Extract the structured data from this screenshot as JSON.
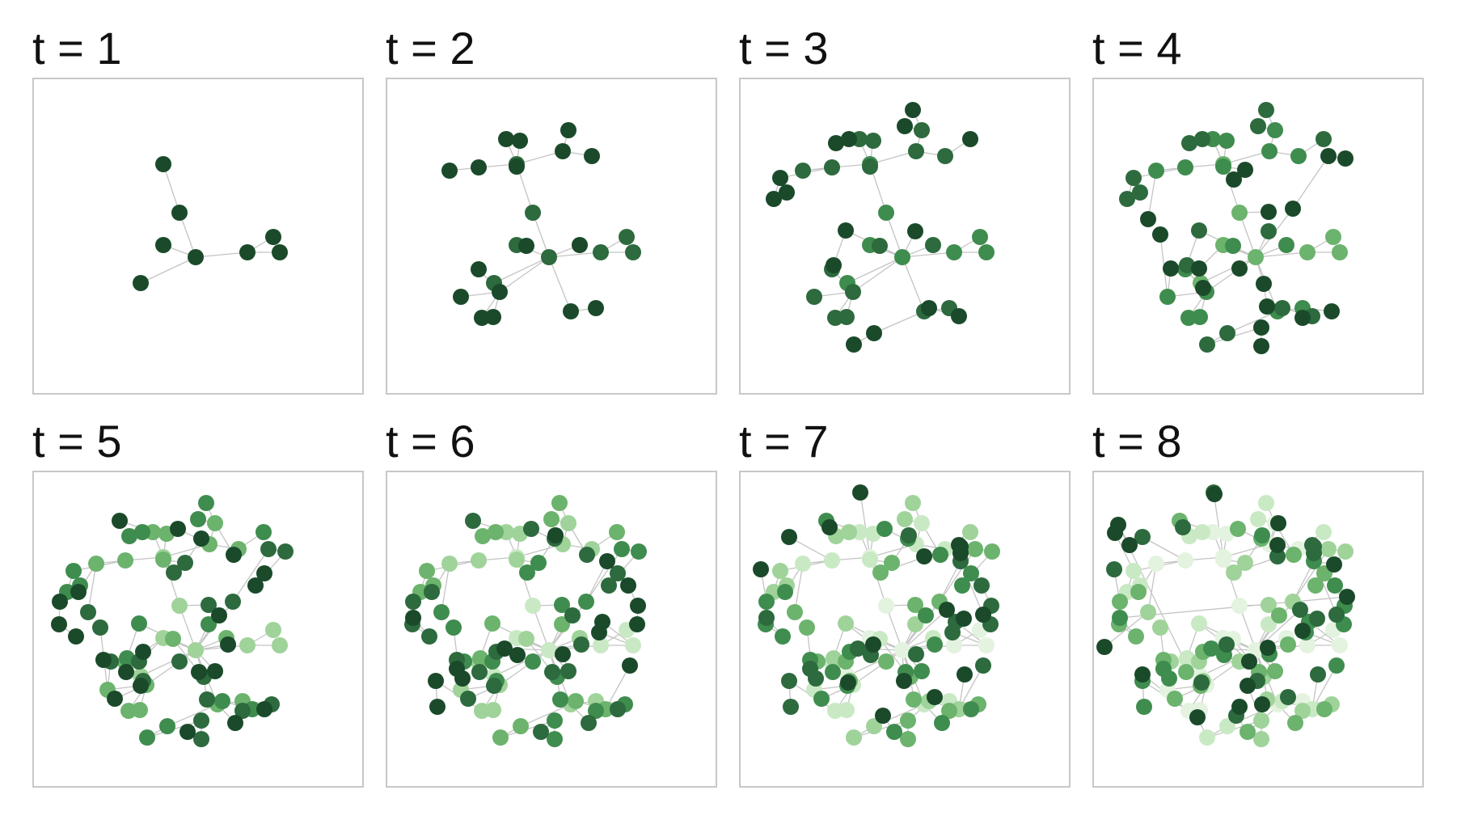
{
  "panels": [
    {
      "label": "t = 1",
      "t": 1
    },
    {
      "label": "t = 2",
      "t": 2
    },
    {
      "label": "t = 3",
      "t": 3
    },
    {
      "label": "t = 4",
      "t": 4
    },
    {
      "label": "t = 5",
      "t": 5
    },
    {
      "label": "t = 6",
      "t": 6
    },
    {
      "label": "t = 7",
      "t": 7
    },
    {
      "label": "t = 8",
      "t": 8
    }
  ],
  "colors": {
    "edge": "#c4c4c4",
    "node_by_age": [
      "#1a4a2a",
      "#2d6a3e",
      "#3f8c4f",
      "#6cb36d",
      "#9fd39a",
      "#c9e9c4",
      "#e3f3df"
    ],
    "frame_border": "#c8c8c8"
  }
}
